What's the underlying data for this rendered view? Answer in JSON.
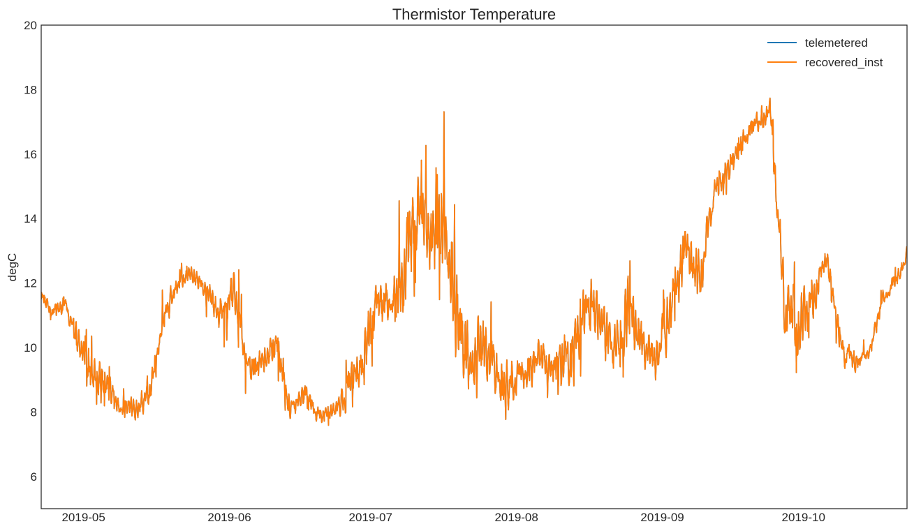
{
  "chart_data": {
    "type": "line",
    "title": "Thermistor Temperature",
    "xlabel": "",
    "ylabel": "degC",
    "xlim": [
      "2019-04-22",
      "2019-10-23"
    ],
    "ylim": [
      5,
      20
    ],
    "yticks": [
      6,
      8,
      10,
      12,
      14,
      16,
      18,
      20
    ],
    "xticks": [
      {
        "date": "2019-05-01",
        "label": "2019-05"
      },
      {
        "date": "2019-06-01",
        "label": "2019-06"
      },
      {
        "date": "2019-07-01",
        "label": "2019-07"
      },
      {
        "date": "2019-08-01",
        "label": "2019-08"
      },
      {
        "date": "2019-09-01",
        "label": "2019-09"
      },
      {
        "date": "2019-10-01",
        "label": "2019-10"
      }
    ],
    "grid": false,
    "legend_position": "top-right",
    "series": [
      {
        "name": "telemetered",
        "color": "#1f77b4",
        "noise": 0
      },
      {
        "name": "recovered_inst",
        "color": "#ff7f0e",
        "noise": 1
      }
    ],
    "baseline": {
      "x": [
        "2019-04-22",
        "2019-04-24",
        "2019-04-27",
        "2019-04-30",
        "2019-05-03",
        "2019-05-06",
        "2019-05-09",
        "2019-05-12",
        "2019-05-15",
        "2019-05-18",
        "2019-05-21",
        "2019-05-24",
        "2019-05-27",
        "2019-05-30",
        "2019-06-02",
        "2019-06-05",
        "2019-06-08",
        "2019-06-11",
        "2019-06-14",
        "2019-06-17",
        "2019-06-20",
        "2019-06-23",
        "2019-06-26",
        "2019-06-29",
        "2019-07-02",
        "2019-07-05",
        "2019-07-08",
        "2019-07-11",
        "2019-07-14",
        "2019-07-17",
        "2019-07-20",
        "2019-07-23",
        "2019-07-26",
        "2019-07-29",
        "2019-08-01",
        "2019-08-04",
        "2019-08-07",
        "2019-08-10",
        "2019-08-13",
        "2019-08-16",
        "2019-08-19",
        "2019-08-22",
        "2019-08-25",
        "2019-08-28",
        "2019-08-31",
        "2019-09-03",
        "2019-09-06",
        "2019-09-09",
        "2019-09-12",
        "2019-09-15",
        "2019-09-18",
        "2019-09-21",
        "2019-09-24",
        "2019-09-27",
        "2019-09-30",
        "2019-10-03",
        "2019-10-06",
        "2019-10-09",
        "2019-10-12",
        "2019-10-15",
        "2019-10-18",
        "2019-10-21",
        "2019-10-23"
      ],
      "y": [
        11.6,
        11.1,
        11.4,
        10.2,
        9.2,
        8.8,
        8.0,
        8.2,
        8.5,
        11.0,
        12.0,
        12.3,
        11.8,
        11.0,
        11.6,
        9.4,
        9.6,
        10.2,
        8.0,
        8.6,
        7.8,
        8.0,
        8.6,
        9.4,
        11.2,
        11.4,
        12.0,
        14.2,
        13.4,
        13.8,
        10.2,
        9.6,
        9.8,
        8.8,
        9.0,
        9.6,
        9.6,
        9.2,
        10.0,
        11.4,
        10.8,
        9.8,
        11.2,
        10.0,
        9.6,
        11.4,
        13.0,
        12.0,
        14.8,
        15.6,
        16.4,
        17.0,
        17.2,
        11.2,
        10.8,
        11.6,
        12.8,
        10.0,
        9.6,
        9.8,
        11.6,
        12.2,
        12.9
      ],
      "noise_amplitude": [
        0.3,
        0.3,
        0.3,
        0.5,
        0.6,
        0.7,
        0.3,
        0.4,
        0.5,
        0.6,
        0.3,
        0.3,
        0.4,
        0.6,
        0.8,
        0.5,
        0.6,
        0.8,
        0.4,
        0.4,
        0.3,
        0.3,
        0.7,
        0.8,
        0.9,
        1.0,
        1.4,
        1.6,
        1.4,
        1.8,
        1.6,
        1.5,
        1.3,
        0.8,
        0.8,
        0.8,
        0.6,
        1.2,
        1.3,
        1.2,
        1.0,
        1.0,
        1.2,
        0.8,
        0.8,
        1.0,
        1.2,
        1.0,
        0.4,
        0.5,
        0.4,
        0.4,
        0.6,
        1.0,
        1.2,
        0.8,
        0.4,
        0.6,
        0.4,
        0.3,
        0.3,
        0.3,
        0.3
      ]
    }
  }
}
